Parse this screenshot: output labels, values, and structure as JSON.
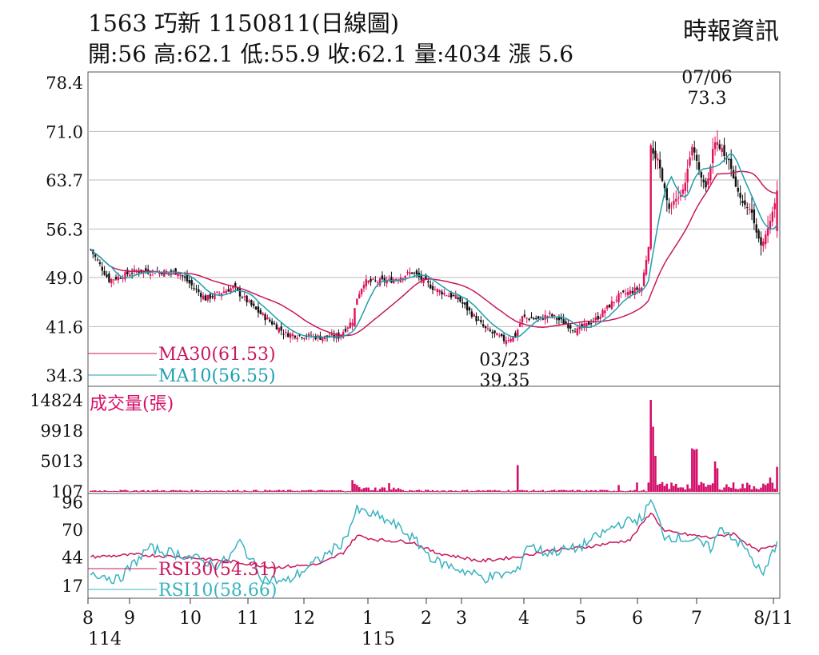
{
  "header": {
    "title": "1563  巧新 1150811(日線圖)",
    "stats": "開:56 高:62.1 低:55.9 收:62.1 量:4034 漲 5.6",
    "source": "時報資訊"
  },
  "colors": {
    "up": "#e0105a",
    "down": "#111111",
    "ma30": "#c8185f",
    "ma10": "#1f9fb0",
    "volume": "#d4106a",
    "rsi30": "#c8185f",
    "rsi10": "#38b3c0",
    "grid": "#bbbbbb"
  },
  "chart_data": [
    {
      "type": "candlestick",
      "panel": "price",
      "y_ticks": [
        "78.4",
        "71.0",
        "63.7",
        "56.3",
        "49.0",
        "41.6",
        "34.3"
      ],
      "ylim": [
        34.3,
        78.4
      ],
      "x_ticks": [
        "8",
        "9",
        "10",
        "11",
        "12",
        "1",
        "2",
        "3",
        "4",
        "5",
        "6",
        "7",
        "8/11"
      ],
      "x_sub_labels": [
        "114",
        "115"
      ],
      "grid": true,
      "legend": [
        {
          "name": "MA30(61.53)",
          "series": "ma30"
        },
        {
          "name": "MA10(56.55)",
          "series": "ma10"
        }
      ],
      "annotations": [
        {
          "date": "07/06",
          "value": "73.3",
          "kind": "high"
        },
        {
          "date": "03/23",
          "value": "39.35",
          "kind": "low"
        }
      ],
      "close_anchors": [
        [
          0,
          53.2
        ],
        [
          8,
          48.6
        ],
        [
          20,
          50.0
        ],
        [
          38,
          49.8
        ],
        [
          50,
          45.8
        ],
        [
          62,
          47.5
        ],
        [
          72,
          44.1
        ],
        [
          85,
          40.5
        ],
        [
          100,
          40.0
        ],
        [
          108,
          40.1
        ],
        [
          114,
          42.5
        ],
        [
          116,
          46.0
        ],
        [
          119,
          48.3
        ],
        [
          130,
          48.5
        ],
        [
          140,
          49.8
        ],
        [
          150,
          47.2
        ],
        [
          160,
          45.8
        ],
        [
          172,
          41.2
        ],
        [
          180,
          39.6
        ],
        [
          185,
          40.2
        ],
        [
          188,
          43.0
        ],
        [
          195,
          42.7
        ],
        [
          200,
          43.4
        ],
        [
          212,
          41.0
        ],
        [
          220,
          42.7
        ],
        [
          230,
          46.2
        ],
        [
          240,
          47.5
        ],
        [
          243,
          54.0
        ],
        [
          244,
          68.5
        ],
        [
          247,
          66.5
        ],
        [
          252,
          59.2
        ],
        [
          258,
          62.0
        ],
        [
          262,
          68.5
        ],
        [
          268,
          62.5
        ],
        [
          272,
          69.8
        ],
        [
          278,
          66.5
        ],
        [
          282,
          61.5
        ],
        [
          288,
          58.8
        ],
        [
          292,
          53.5
        ],
        [
          296,
          57.3
        ],
        [
          299,
          62.1
        ]
      ],
      "ma10_end": 56.55,
      "ma30_end": 61.53
    },
    {
      "type": "bar",
      "panel": "volume",
      "title": "成交量(張)",
      "y_ticks": [
        "14824",
        "9918",
        "5013",
        "107"
      ],
      "ylim": [
        0,
        14824
      ],
      "spikes": [
        [
          114,
          1900
        ],
        [
          115,
          1300
        ],
        [
          116,
          1100
        ],
        [
          130,
          1400
        ],
        [
          186,
          4300
        ],
        [
          230,
          1100
        ],
        [
          238,
          1500
        ],
        [
          244,
          14824
        ],
        [
          245,
          10500
        ],
        [
          246,
          5800
        ],
        [
          262,
          7000
        ],
        [
          263,
          6800
        ],
        [
          264,
          6900
        ],
        [
          272,
          4900
        ],
        [
          273,
          3800
        ],
        [
          296,
          2300
        ],
        [
          299,
          4034
        ]
      ]
    },
    {
      "type": "line",
      "panel": "rsi",
      "y_ticks": [
        "96",
        "70",
        "44",
        "17"
      ],
      "ylim": [
        8,
        100
      ],
      "series": [
        {
          "name": "RSI30(54.31)",
          "key": "rsi30",
          "anchors": [
            [
              0,
              44
            ],
            [
              20,
              46
            ],
            [
              40,
              44
            ],
            [
              60,
              40
            ],
            [
              80,
              34
            ],
            [
              100,
              37
            ],
            [
              110,
              48
            ],
            [
              116,
              64
            ],
            [
              125,
              60
            ],
            [
              140,
              58
            ],
            [
              150,
              48
            ],
            [
              170,
              40
            ],
            [
              186,
              44
            ],
            [
              200,
              50
            ],
            [
              215,
              53
            ],
            [
              235,
              60
            ],
            [
              244,
              86
            ],
            [
              250,
              68
            ],
            [
              270,
              62
            ],
            [
              280,
              66
            ],
            [
              290,
              50
            ],
            [
              299,
              54.31
            ]
          ]
        },
        {
          "name": "RSI10(58.66)",
          "key": "rsi10",
          "anchors": [
            [
              0,
              30
            ],
            [
              12,
              22
            ],
            [
              25,
              52
            ],
            [
              40,
              46
            ],
            [
              55,
              36
            ],
            [
              60,
              42
            ],
            [
              65,
              58
            ],
            [
              75,
              24
            ],
            [
              85,
              20
            ],
            [
              100,
              42
            ],
            [
              110,
              58
            ],
            [
              116,
              88
            ],
            [
              125,
              82
            ],
            [
              132,
              75
            ],
            [
              140,
              62
            ],
            [
              150,
              40
            ],
            [
              172,
              24
            ],
            [
              186,
              30
            ],
            [
              190,
              56
            ],
            [
              198,
              48
            ],
            [
              212,
              52
            ],
            [
              230,
              75
            ],
            [
              240,
              80
            ],
            [
              244,
              97
            ],
            [
              250,
              64
            ],
            [
              262,
              60
            ],
            [
              270,
              52
            ],
            [
              275,
              72
            ],
            [
              285,
              52
            ],
            [
              293,
              26
            ],
            [
              299,
              58.66
            ]
          ]
        }
      ]
    }
  ]
}
